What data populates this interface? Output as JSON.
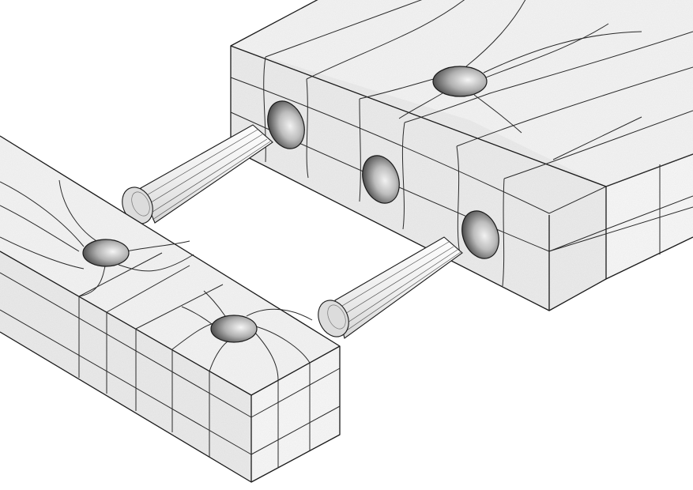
{
  "diagram": {
    "type": "dowel-joint-mesh",
    "components": [
      {
        "name": "beam-right",
        "holes": 3,
        "top_holes": 1
      },
      {
        "name": "beam-left",
        "top_holes": 2
      },
      {
        "name": "dowels",
        "count": 2
      }
    ],
    "colors": {
      "background": "#ffffff",
      "face_top": "#f4f4f4",
      "face_front": "#ebebeb",
      "face_end": "#fafafa",
      "line": "#1a1a1a",
      "hole_dark": "#3c3c3c",
      "hole_light": "#d9d9d9"
    }
  }
}
